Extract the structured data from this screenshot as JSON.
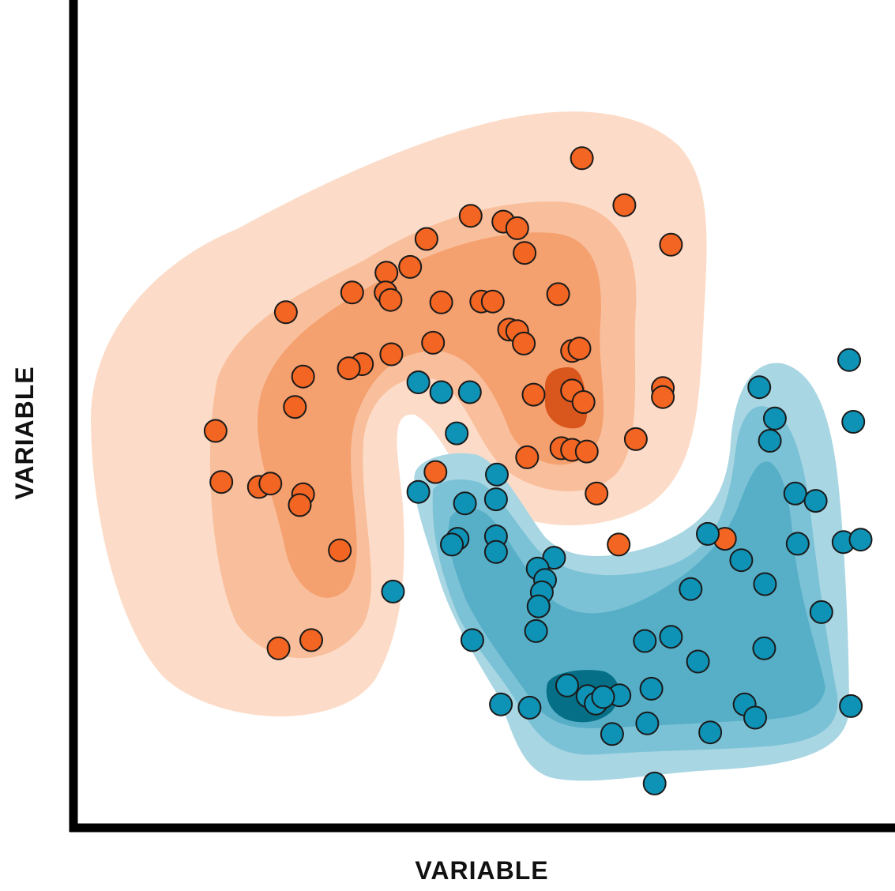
{
  "chart_data": {
    "type": "scatter",
    "title": "",
    "xlabel": "VARIABLE",
    "ylabel": "VARIABLE",
    "xlim": [
      0,
      100
    ],
    "ylim": [
      0,
      100
    ],
    "grid": false,
    "ticks": false,
    "density_contours": true,
    "colors": {
      "orange_point": "#f26522",
      "orange_levels": [
        "#fcdcc8",
        "#f9bf9c",
        "#f5a06f",
        "#d9561c"
      ],
      "blue_point": "#0e92b5",
      "blue_levels": [
        "#a9d6e3",
        "#7cc2d6",
        "#57afc7",
        "#056f87"
      ],
      "stroke": "#1a1a1a",
      "axis": "#000000"
    },
    "series": [
      {
        "color": "#f26522",
        "points": [
          [
            61.7,
            80.8
          ],
          [
            66.9,
            75.1
          ],
          [
            72.6,
            70.3
          ],
          [
            48.1,
            73.8
          ],
          [
            42.7,
            71.0
          ],
          [
            52.1,
            73.1
          ],
          [
            53.8,
            72.3
          ],
          [
            54.7,
            69.3
          ],
          [
            40.7,
            67.6
          ],
          [
            37.8,
            66.9
          ],
          [
            33.6,
            64.5
          ],
          [
            37.7,
            64.5
          ],
          [
            38.3,
            63.6
          ],
          [
            44.5,
            63.3
          ],
          [
            49.4,
            63.4
          ],
          [
            50.8,
            63.4
          ],
          [
            58.8,
            64.3
          ],
          [
            25.5,
            62.1
          ],
          [
            52.8,
            60.0
          ],
          [
            53.8,
            59.8
          ],
          [
            54.6,
            58.3
          ],
          [
            43.5,
            58.4
          ],
          [
            38.4,
            57.0
          ],
          [
            34.8,
            55.8
          ],
          [
            33.2,
            55.3
          ],
          [
            27.6,
            54.3
          ],
          [
            60.5,
            57.4
          ],
          [
            61.4,
            57.7
          ],
          [
            60.5,
            52.6
          ],
          [
            61.9,
            51.2
          ],
          [
            55.8,
            52.1
          ],
          [
            71.6,
            52.9
          ],
          [
            71.6,
            51.8
          ],
          [
            26.6,
            50.6
          ],
          [
            16.9,
            47.7
          ],
          [
            68.3,
            46.7
          ],
          [
            59.2,
            45.6
          ],
          [
            60.5,
            45.4
          ],
          [
            62.3,
            45.2
          ],
          [
            55.0,
            44.5
          ],
          [
            43.8,
            42.7
          ],
          [
            63.5,
            40.1
          ],
          [
            17.6,
            41.5
          ],
          [
            22.2,
            40.9
          ],
          [
            23.6,
            41.3
          ],
          [
            27.6,
            40.0
          ],
          [
            27.2,
            38.7
          ],
          [
            32.1,
            33.2
          ],
          [
            66.2,
            33.9
          ],
          [
            79.2,
            34.6
          ],
          [
            28.6,
            22.3
          ],
          [
            24.6,
            21.3
          ]
        ]
      },
      {
        "color": "#0e92b5",
        "points": [
          [
            94.4,
            56.3
          ],
          [
            41.7,
            53.6
          ],
          [
            44.5,
            52.4
          ],
          [
            48.0,
            52.4
          ],
          [
            83.4,
            53.0
          ],
          [
            85.3,
            49.2
          ],
          [
            94.9,
            48.8
          ],
          [
            46.4,
            47.4
          ],
          [
            84.7,
            46.5
          ],
          [
            51.3,
            42.4
          ],
          [
            41.7,
            40.3
          ],
          [
            47.4,
            38.9
          ],
          [
            51.2,
            39.4
          ],
          [
            87.8,
            40.1
          ],
          [
            90.3,
            39.2
          ],
          [
            46.5,
            34.6
          ],
          [
            51.2,
            34.9
          ],
          [
            45.8,
            33.9
          ],
          [
            51.2,
            33.0
          ],
          [
            58.3,
            32.3
          ],
          [
            56.3,
            31.0
          ],
          [
            77.1,
            35.2
          ],
          [
            81.2,
            32.0
          ],
          [
            75.0,
            28.5
          ],
          [
            84.1,
            29.1
          ],
          [
            88.1,
            34.0
          ],
          [
            93.7,
            34.2
          ],
          [
            95.8,
            34.5
          ],
          [
            57.2,
            29.6
          ],
          [
            56.8,
            28.1
          ],
          [
            56.4,
            26.4
          ],
          [
            38.6,
            28.2
          ],
          [
            56.1,
            23.4
          ],
          [
            91.0,
            25.7
          ],
          [
            48.3,
            22.3
          ],
          [
            69.4,
            22.2
          ],
          [
            72.6,
            22.7
          ],
          [
            84.0,
            21.3
          ],
          [
            75.9,
            19.7
          ],
          [
            59.9,
            16.8
          ],
          [
            66.3,
            15.6
          ],
          [
            70.2,
            16.4
          ],
          [
            62.4,
            15.5
          ],
          [
            63.4,
            14.6
          ],
          [
            64.3,
            15.4
          ],
          [
            51.8,
            14.5
          ],
          [
            55.3,
            14.1
          ],
          [
            81.6,
            14.5
          ],
          [
            82.9,
            12.9
          ],
          [
            94.6,
            14.3
          ],
          [
            69.7,
            12.2
          ],
          [
            65.4,
            10.9
          ],
          [
            77.4,
            11.1
          ],
          [
            70.6,
            4.9
          ]
        ]
      }
    ]
  }
}
